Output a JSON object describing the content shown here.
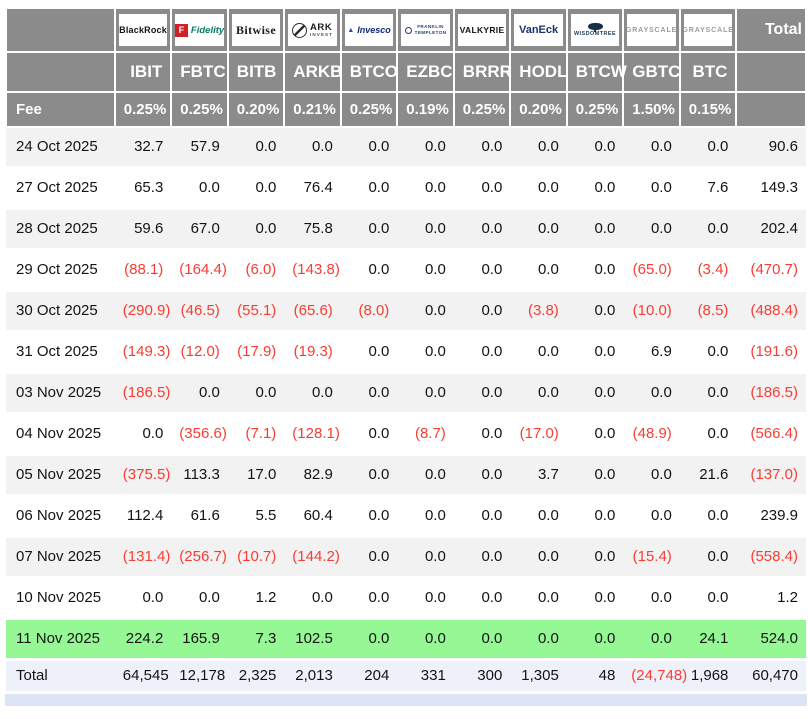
{
  "header": {
    "fee_label": "Fee",
    "total_label": "Total"
  },
  "columns": [
    {
      "brand": "BlackRock",
      "style": "blackrock",
      "ticker": "IBIT",
      "fee": "0.25%"
    },
    {
      "brand": "Fidelity",
      "style": "fidelity",
      "ticker": "FBTC",
      "fee": "0.25%"
    },
    {
      "brand": "Bitwise",
      "style": "bitwise",
      "ticker": "BITB",
      "fee": "0.20%"
    },
    {
      "brand": "ARK INVEST",
      "style": "ark",
      "ticker": "ARKB",
      "fee": "0.21%"
    },
    {
      "brand": "Invesco",
      "style": "invesco",
      "ticker": "BTCO",
      "fee": "0.25%"
    },
    {
      "brand": "FRANKLIN TEMPLETON",
      "style": "franklin",
      "ticker": "EZBC",
      "fee": "0.19%"
    },
    {
      "brand": "VALKYRIE",
      "style": "valkyrie",
      "ticker": "BRRR",
      "fee": "0.25%"
    },
    {
      "brand": "VanEck",
      "style": "vaneck",
      "ticker": "HODL",
      "fee": "0.20%"
    },
    {
      "brand": "WISDOMTREE",
      "style": "wisdomtree",
      "ticker": "BTCW",
      "fee": "0.25%"
    },
    {
      "brand": "GRAYSCALE",
      "style": "grayscale",
      "ticker": "GBTC",
      "fee": "1.50%"
    },
    {
      "brand": "GRAYSCALE",
      "style": "grayscale",
      "ticker": "BTC",
      "fee": "0.15%"
    }
  ],
  "rows": [
    {
      "date": "24 Oct 2025",
      "highlight": false,
      "values": [
        "32.7",
        "57.9",
        "0.0",
        "0.0",
        "0.0",
        "0.0",
        "0.0",
        "0.0",
        "0.0",
        "0.0",
        "0.0",
        "90.6"
      ]
    },
    {
      "date": "27 Oct 2025",
      "highlight": false,
      "values": [
        "65.3",
        "0.0",
        "0.0",
        "76.4",
        "0.0",
        "0.0",
        "0.0",
        "0.0",
        "0.0",
        "0.0",
        "7.6",
        "149.3"
      ]
    },
    {
      "date": "28 Oct 2025",
      "highlight": false,
      "values": [
        "59.6",
        "67.0",
        "0.0",
        "75.8",
        "0.0",
        "0.0",
        "0.0",
        "0.0",
        "0.0",
        "0.0",
        "0.0",
        "202.4"
      ]
    },
    {
      "date": "29 Oct 2025",
      "highlight": false,
      "values": [
        "(88.1)",
        "(164.4)",
        "(6.0)",
        "(143.8)",
        "0.0",
        "0.0",
        "0.0",
        "0.0",
        "0.0",
        "(65.0)",
        "(3.4)",
        "(470.7)"
      ]
    },
    {
      "date": "30 Oct 2025",
      "highlight": false,
      "values": [
        "(290.9)",
        "(46.5)",
        "(55.1)",
        "(65.6)",
        "(8.0)",
        "0.0",
        "0.0",
        "(3.8)",
        "0.0",
        "(10.0)",
        "(8.5)",
        "(488.4)"
      ]
    },
    {
      "date": "31 Oct 2025",
      "highlight": false,
      "values": [
        "(149.3)",
        "(12.0)",
        "(17.9)",
        "(19.3)",
        "0.0",
        "0.0",
        "0.0",
        "0.0",
        "0.0",
        "6.9",
        "0.0",
        "(191.6)"
      ]
    },
    {
      "date": "03 Nov 2025",
      "highlight": false,
      "values": [
        "(186.5)",
        "0.0",
        "0.0",
        "0.0",
        "0.0",
        "0.0",
        "0.0",
        "0.0",
        "0.0",
        "0.0",
        "0.0",
        "(186.5)"
      ]
    },
    {
      "date": "04 Nov 2025",
      "highlight": false,
      "values": [
        "0.0",
        "(356.6)",
        "(7.1)",
        "(128.1)",
        "0.0",
        "(8.7)",
        "0.0",
        "(17.0)",
        "0.0",
        "(48.9)",
        "0.0",
        "(566.4)"
      ]
    },
    {
      "date": "05 Nov 2025",
      "highlight": false,
      "values": [
        "(375.5)",
        "113.3",
        "17.0",
        "82.9",
        "0.0",
        "0.0",
        "0.0",
        "3.7",
        "0.0",
        "0.0",
        "21.6",
        "(137.0)"
      ]
    },
    {
      "date": "06 Nov 2025",
      "highlight": false,
      "values": [
        "112.4",
        "61.6",
        "5.5",
        "60.4",
        "0.0",
        "0.0",
        "0.0",
        "0.0",
        "0.0",
        "0.0",
        "0.0",
        "239.9"
      ]
    },
    {
      "date": "07 Nov 2025",
      "highlight": false,
      "values": [
        "(131.4)",
        "(256.7)",
        "(10.7)",
        "(144.2)",
        "0.0",
        "0.0",
        "0.0",
        "0.0",
        "0.0",
        "(15.4)",
        "0.0",
        "(558.4)"
      ]
    },
    {
      "date": "10 Nov 2025",
      "highlight": false,
      "values": [
        "0.0",
        "0.0",
        "1.2",
        "0.0",
        "0.0",
        "0.0",
        "0.0",
        "0.0",
        "0.0",
        "0.0",
        "0.0",
        "1.2"
      ]
    },
    {
      "date": "11 Nov 2025",
      "highlight": true,
      "values": [
        "224.2",
        "165.9",
        "7.3",
        "102.5",
        "0.0",
        "0.0",
        "0.0",
        "0.0",
        "0.0",
        "0.0",
        "24.1",
        "524.0"
      ]
    }
  ],
  "total_row": {
    "label": "Total",
    "values": [
      "64,545",
      "12,178",
      "2,325",
      "2,013",
      "204",
      "331",
      "300",
      "1,305",
      "48",
      "(24,748)",
      "1,968",
      "60,470"
    ]
  },
  "colors": {
    "header_bg": "#8b8b8b",
    "stripe_bg": "#f2f2f2",
    "highlight_bg": "#96f795",
    "total_bg": "#eef1f9",
    "negative": "#fa3c32",
    "footer_bar": "#dce4f5"
  }
}
